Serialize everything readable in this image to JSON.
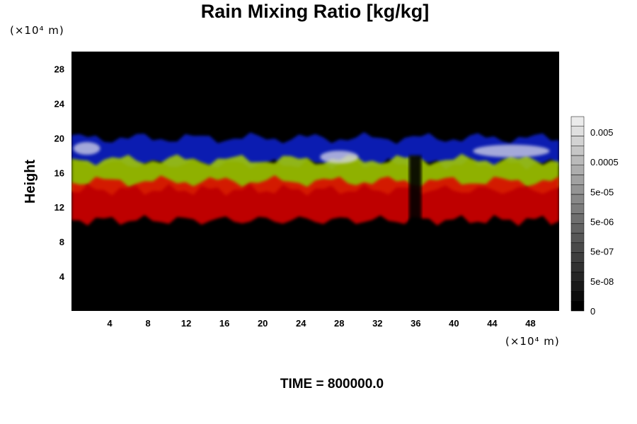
{
  "chart_data": {
    "type": "heatmap",
    "title": "Rain Mixing Ratio [kg/kg]",
    "xlabel": "",
    "ylabel": "Height",
    "x_unit": "(×10⁴ m)",
    "y_unit": "(×10⁴ m)",
    "xlim": [
      0,
      51
    ],
    "ylim": [
      0,
      30
    ],
    "x_ticks": [
      4,
      8,
      12,
      16,
      20,
      24,
      28,
      32,
      36,
      40,
      44,
      48
    ],
    "y_ticks": [
      4,
      8,
      12,
      16,
      20,
      24,
      28
    ],
    "colorbar": {
      "labels": [
        "0",
        "5e-08",
        "5e-07",
        "5e-06",
        "5e-05",
        "0.0005",
        "0.005"
      ],
      "levels": 20
    },
    "bands": [
      {
        "color": "#1020d0",
        "y_range": [
          17.0,
          20.0
        ]
      },
      {
        "color": "#a8d000",
        "y_range": [
          14.0,
          17.5
        ]
      },
      {
        "color": "#e00000",
        "y_range": [
          10.5,
          15.0
        ]
      }
    ],
    "footer": "TIME = 800000.0"
  }
}
